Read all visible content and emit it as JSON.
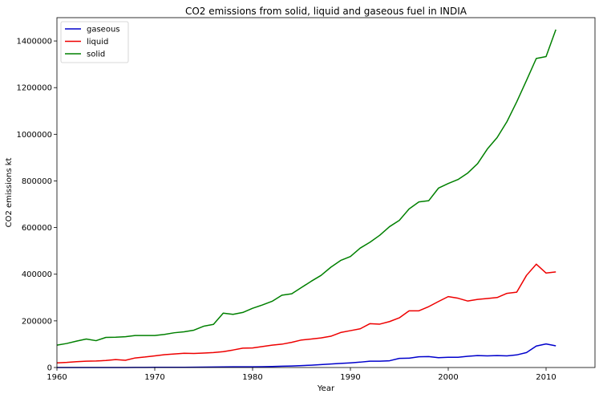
{
  "chart_data": {
    "type": "line",
    "title": "CO2 emissions from solid, liquid and gaseous fuel in INDIA",
    "xlabel": "Year",
    "ylabel": "CO2 emissions kt",
    "xlim": [
      1960,
      2015
    ],
    "ylim": [
      0,
      1500000
    ],
    "xticks": [
      1960,
      1970,
      1980,
      1990,
      2000,
      2010
    ],
    "yticks": [
      0,
      200000,
      400000,
      600000,
      800000,
      1000000,
      1200000,
      1400000
    ],
    "grid": false,
    "legend": "top-left",
    "x": [
      1960,
      1961,
      1962,
      1963,
      1964,
      1965,
      1966,
      1967,
      1968,
      1969,
      1970,
      1971,
      1972,
      1973,
      1974,
      1975,
      1976,
      1977,
      1978,
      1979,
      1980,
      1981,
      1982,
      1983,
      1984,
      1985,
      1986,
      1987,
      1988,
      1989,
      1990,
      1991,
      1992,
      1993,
      1994,
      1995,
      1996,
      1997,
      1998,
      1999,
      2000,
      2001,
      2002,
      2003,
      2004,
      2005,
      2006,
      2007,
      2008,
      2009,
      2010,
      2011
    ],
    "series": [
      {
        "name": "gaseous",
        "color": "#0000cc",
        "values": [
          0,
          0,
          0,
          0,
          0,
          0,
          0,
          0,
          300,
          500,
          700,
          800,
          900,
          1000,
          1200,
          1500,
          2000,
          2500,
          3000,
          3200,
          3000,
          3500,
          4500,
          5500,
          6500,
          8000,
          10000,
          12500,
          15000,
          17500,
          20000,
          23000,
          27000,
          27000,
          29000,
          39000,
          40000,
          46000,
          47000,
          42000,
          44000,
          44000,
          48000,
          51000,
          50000,
          51000,
          50000,
          54000,
          64000,
          92000,
          101000,
          93000
        ]
      },
      {
        "name": "liquid",
        "color": "#ee0000",
        "values": [
          20000,
          22000,
          25000,
          27000,
          28000,
          30000,
          34000,
          31000,
          41000,
          45000,
          50000,
          55000,
          58000,
          61000,
          60000,
          62000,
          64000,
          68000,
          75000,
          83000,
          84000,
          90000,
          96000,
          100000,
          108000,
          118000,
          122000,
          127000,
          134000,
          150000,
          158000,
          166000,
          188000,
          186000,
          197000,
          213000,
          243000,
          243000,
          261000,
          283000,
          304000,
          297000,
          285000,
          292000,
          296000,
          300000,
          318000,
          323000,
          395000,
          443000,
          405000,
          410000
        ]
      },
      {
        "name": "solid",
        "color": "#008000",
        "values": [
          96000,
          103000,
          113000,
          122000,
          115000,
          129000,
          130000,
          132000,
          137000,
          137000,
          137000,
          142000,
          149000,
          153000,
          160000,
          177000,
          185000,
          233000,
          228000,
          236000,
          254000,
          268000,
          284000,
          310000,
          316000,
          343000,
          370000,
          395000,
          430000,
          459000,
          476000,
          512000,
          537000,
          567000,
          604000,
          631000,
          680000,
          710000,
          715000,
          769000,
          789000,
          806000,
          834000,
          874000,
          937000,
          986000,
          1054000,
          1139000,
          1231000,
          1325000,
          1333000,
          1449000
        ]
      }
    ]
  }
}
